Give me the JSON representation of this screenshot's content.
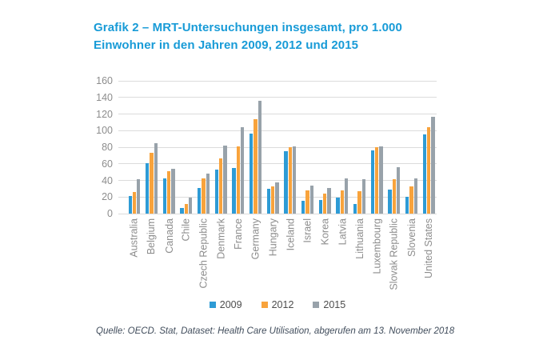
{
  "title": {
    "line1": "Grafik 2 – MRT-Untersuchungen insgesamt, pro 1.000",
    "line2": "Einwohner in den Jahren 2009, 2012 und 2015"
  },
  "source": "Quelle: OECD. Stat, Dataset: Health Care Utilisation, abgerufen am 13. November 2018",
  "colors": {
    "title_text": "#189BD7",
    "axis_label": "#8D8D8D",
    "gridline": "#DCDCDC",
    "legend_text": "#4D4D4D",
    "source_text": "#414D5C"
  },
  "chart_data": {
    "type": "bar",
    "title": "MRT-Untersuchungen insgesamt, pro 1.000 Einwohner, 2009/2012/2015",
    "categories": [
      "Australia",
      "Belgium",
      "Canada",
      "Chile",
      "Czech Republic",
      "Denmark",
      "France",
      "Germany",
      "Hungary",
      "Iceland",
      "Israel",
      "Korea",
      "Latvia",
      "Lithuania",
      "Luxembourg",
      "Slovak Republic",
      "Slovenia",
      "United States"
    ],
    "series": [
      {
        "name": "2009",
        "color": "#2E9BD5",
        "values": [
          21,
          61,
          42,
          7,
          31,
          53,
          55,
          96,
          30,
          75,
          15,
          16,
          19,
          12,
          76,
          29,
          20,
          95
        ]
      },
      {
        "name": "2012",
        "color": "#F8A33C",
        "values": [
          26,
          73,
          51,
          12,
          42,
          67,
          81,
          114,
          33,
          80,
          28,
          24,
          28,
          27,
          80,
          41,
          33,
          104
        ]
      },
      {
        "name": "2015",
        "color": "#98A2AA",
        "values": [
          41,
          85,
          54,
          19,
          48,
          82,
          104,
          136,
          38,
          81,
          34,
          31,
          42,
          41,
          81,
          56,
          42,
          117
        ]
      }
    ],
    "xlabel": "",
    "ylabel": "",
    "ylim": [
      0,
      160
    ],
    "ytick_step": 20,
    "grid": true,
    "legend_position": "bottom"
  }
}
